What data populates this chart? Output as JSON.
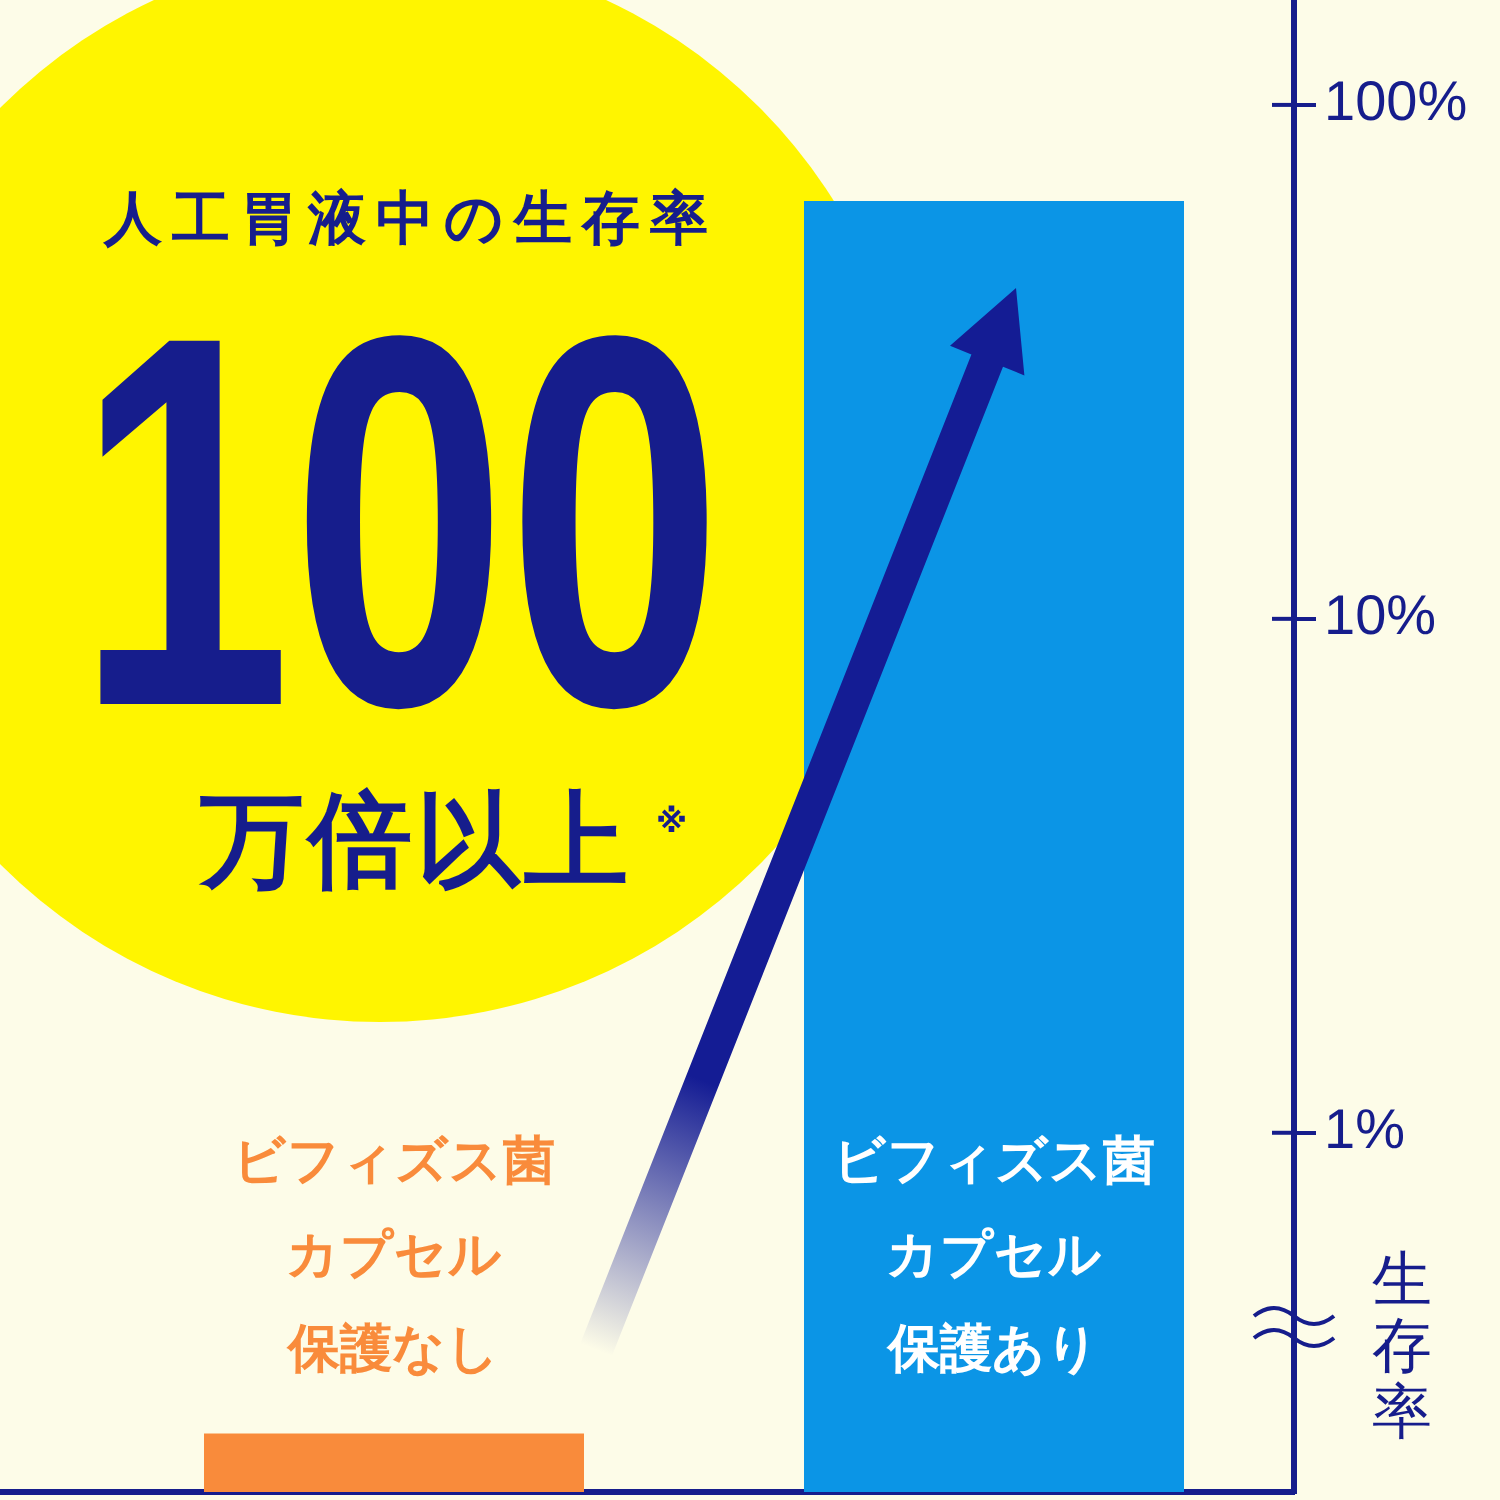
{
  "chart_data": {
    "type": "bar",
    "title": "人工胃液中の生存率",
    "annotations": [
      "100",
      "万倍以上$^{※}$"
    ],
    "ylabel": "生存率",
    "categories": [
      "ビフィズス菌カプセル保護なし",
      "ビフィズス菌カプセル保護あり"
    ],
    "values": [
      0.26,
      65
    ],
    "colors": [
      "#f98b3b",
      "#0b95e6"
    ],
    "log": true,
    "ylim": [
      0.2,
      160
    ],
    "yticks": [
      {
        "value": 1,
        "label": "1%"
      },
      {
        "value": 10,
        "label": "10%"
      },
      {
        "value": 100,
        "label": "100%"
      }
    ],
    "grid": false,
    "legend": false
  }
}
